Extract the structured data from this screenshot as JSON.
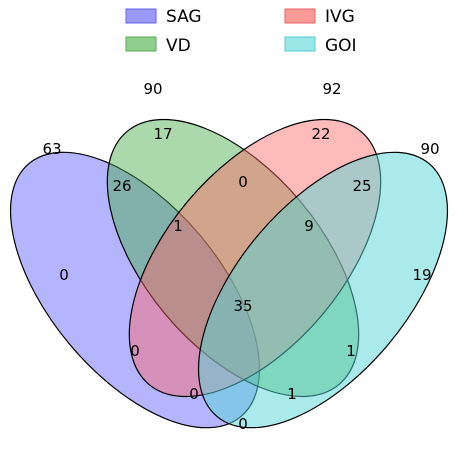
{
  "legend": {
    "items": [
      {
        "label": "SAG",
        "fill": "#9999ff",
        "stroke": "#5555dd"
      },
      {
        "label": "IVG",
        "fill": "#ff9999",
        "stroke": "#dd5555"
      },
      {
        "label": "VD",
        "fill": "#8fce8f",
        "stroke": "#4f9f4f"
      },
      {
        "label": "GOI",
        "fill": "#99e6e6",
        "stroke": "#4fbfbf"
      }
    ]
  },
  "sets": [
    {
      "name": "SAG",
      "total": "63",
      "color": "#7777ff"
    },
    {
      "name": "VD",
      "total": "90",
      "color": "#44aa44"
    },
    {
      "name": "IVG",
      "total": "92",
      "color": "#ff6666"
    },
    {
      "name": "GOI",
      "total": "90",
      "color": "#55d5d5"
    }
  ],
  "regions": {
    "vd_only": "17",
    "ivg_only": "22",
    "vd_ivg": "0",
    "sag_vd": "26",
    "ivg_goi": "25",
    "sag_vd_ivg": "1",
    "vd_ivg_goi": "9",
    "sag_only": "0",
    "goi_only": "19",
    "all_four": "35",
    "sag_ivg": "0",
    "vd_goi": "1",
    "sag_ivg_goi": "0",
    "sag_vd_goi": "1",
    "sag_goi": "0"
  }
}
